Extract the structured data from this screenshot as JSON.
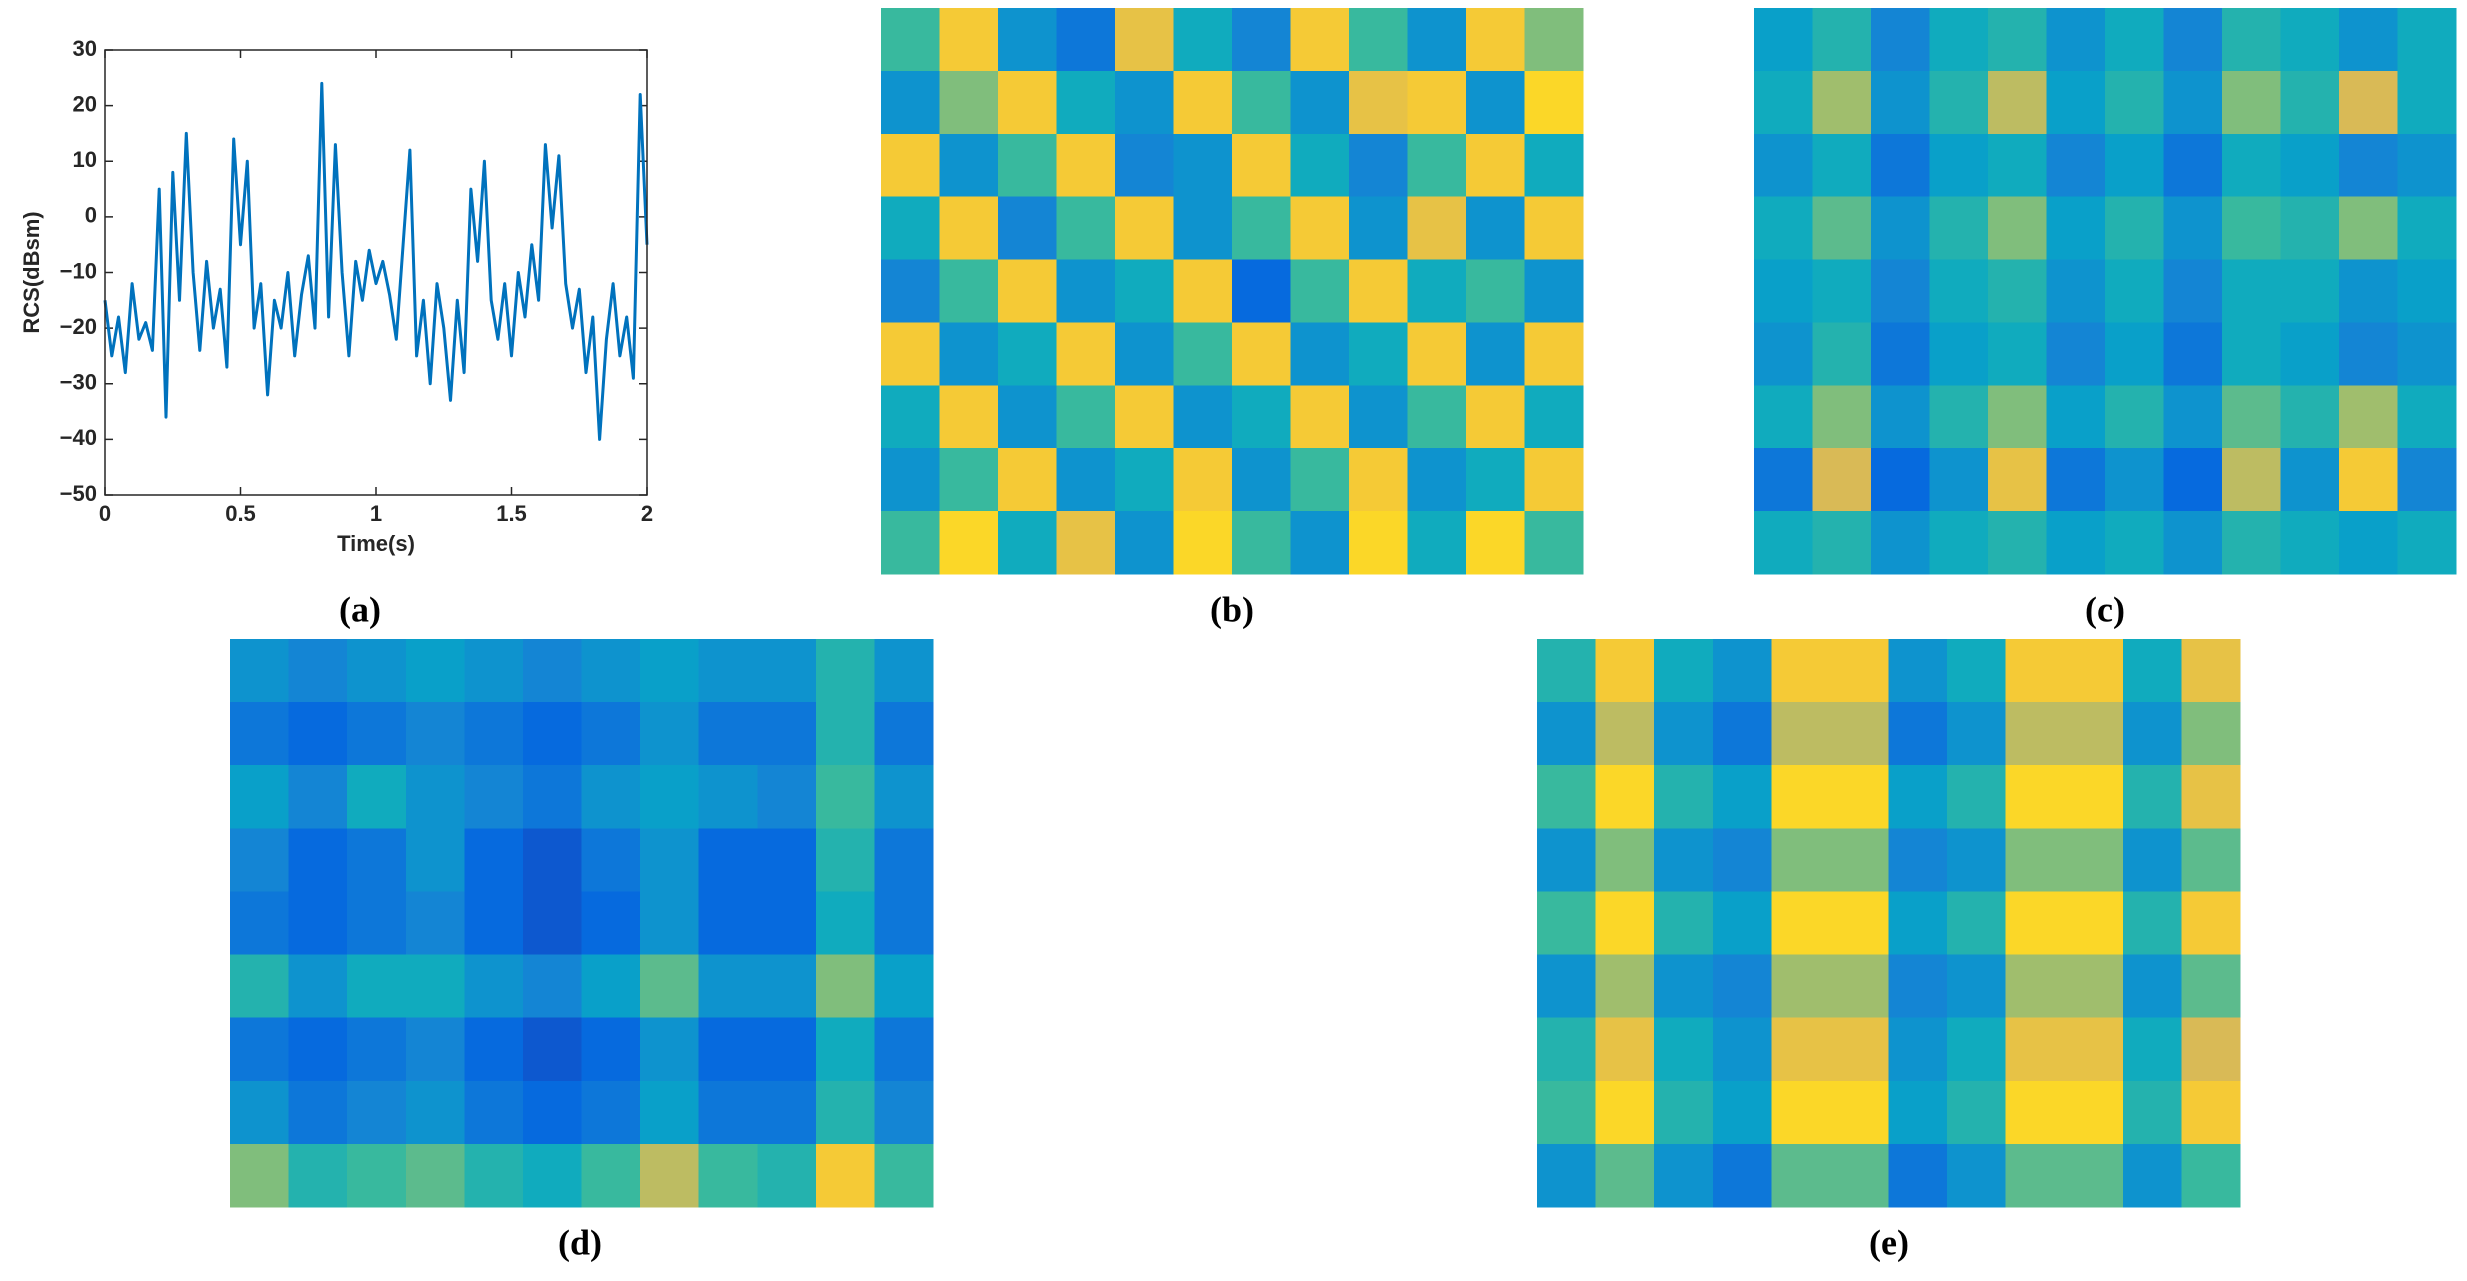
{
  "chart_data": [
    {
      "type": "line",
      "label": "(a)",
      "xlabel": "Time(s)",
      "ylabel": "RCS(dBsm)",
      "color": "#0072bd",
      "xlim": [
        0,
        2
      ],
      "xticks": [
        0,
        0.5,
        1,
        1.5,
        2
      ],
      "ylim": [
        -50,
        30
      ],
      "yticks": [
        {
          "value": -50,
          "label": "−50"
        },
        {
          "value": -40,
          "label": "−40"
        },
        {
          "value": -30,
          "label": "−30"
        },
        {
          "value": -20,
          "label": "−20"
        },
        {
          "value": -10,
          "label": "−10"
        },
        0,
        10,
        20,
        30
      ],
      "x": [
        0,
        0.025,
        0.05,
        0.075,
        0.1,
        0.125,
        0.15,
        0.175,
        0.2,
        0.225,
        0.25,
        0.275,
        0.3,
        0.325,
        0.35,
        0.375,
        0.4,
        0.425,
        0.45,
        0.475,
        0.5,
        0.525,
        0.55,
        0.575,
        0.6,
        0.625,
        0.65,
        0.675,
        0.7,
        0.725,
        0.75,
        0.775,
        0.8,
        0.825,
        0.85,
        0.875,
        0.9,
        0.925,
        0.95,
        0.975,
        1.0,
        1.025,
        1.05,
        1.075,
        1.1,
        1.125,
        1.15,
        1.175,
        1.2,
        1.225,
        1.25,
        1.275,
        1.3,
        1.325,
        1.35,
        1.375,
        1.4,
        1.425,
        1.45,
        1.475,
        1.5,
        1.525,
        1.55,
        1.575,
        1.6,
        1.625,
        1.65,
        1.675,
        1.7,
        1.725,
        1.75,
        1.775,
        1.8,
        1.825,
        1.85,
        1.875,
        1.9,
        1.925,
        1.95,
        1.975,
        2.0
      ],
      "values": [
        -15,
        -25,
        -18,
        -28,
        -12,
        -22,
        -19,
        -24,
        5,
        -36,
        8,
        -15,
        15,
        -10,
        -24,
        -8,
        -20,
        -13,
        -27,
        14,
        -5,
        10,
        -20,
        -12,
        -32,
        -15,
        -20,
        -10,
        -25,
        -14,
        -7,
        -20,
        24,
        -18,
        13,
        -10,
        -25,
        -8,
        -15,
        -6,
        -12,
        -8,
        -14,
        -22,
        -5,
        12,
        -25,
        -15,
        -30,
        -12,
        -20,
        -33,
        -15,
        -28,
        5,
        -8,
        10,
        -15,
        -22,
        -12,
        -25,
        -10,
        -18,
        -5,
        -15,
        13,
        -2,
        11,
        -12,
        -20,
        -13,
        -28,
        -18,
        -40,
        -22,
        -12,
        -25,
        -18,
        -29,
        22,
        -5
      ]
    },
    {
      "type": "heatmap",
      "label": "(b)",
      "zlim": [
        0,
        1
      ],
      "colormap": [
        "#352a87",
        "#0363e1",
        "#1485d4",
        "#06a7c6",
        "#38b99e",
        "#92bf73",
        "#d9ba56",
        "#fcce2e",
        "#f9fb0e"
      ],
      "z": [
        [
          0.5,
          0.85,
          0.3,
          0.2,
          0.8,
          0.4,
          0.25,
          0.85,
          0.5,
          0.3,
          0.85,
          0.6
        ],
        [
          0.3,
          0.6,
          0.85,
          0.4,
          0.3,
          0.85,
          0.5,
          0.3,
          0.8,
          0.85,
          0.3,
          0.9
        ],
        [
          0.85,
          0.3,
          0.5,
          0.85,
          0.25,
          0.3,
          0.85,
          0.4,
          0.25,
          0.5,
          0.85,
          0.4
        ],
        [
          0.4,
          0.85,
          0.25,
          0.5,
          0.85,
          0.3,
          0.5,
          0.85,
          0.3,
          0.8,
          0.3,
          0.85
        ],
        [
          0.25,
          0.5,
          0.85,
          0.3,
          0.4,
          0.85,
          0.15,
          0.5,
          0.85,
          0.4,
          0.5,
          0.3
        ],
        [
          0.85,
          0.3,
          0.4,
          0.85,
          0.3,
          0.5,
          0.85,
          0.3,
          0.4,
          0.85,
          0.3,
          0.85
        ],
        [
          0.4,
          0.85,
          0.3,
          0.5,
          0.85,
          0.3,
          0.4,
          0.85,
          0.3,
          0.5,
          0.85,
          0.4
        ],
        [
          0.3,
          0.5,
          0.85,
          0.3,
          0.4,
          0.85,
          0.3,
          0.5,
          0.85,
          0.3,
          0.4,
          0.85
        ],
        [
          0.5,
          0.9,
          0.4,
          0.8,
          0.3,
          0.9,
          0.5,
          0.3,
          0.9,
          0.4,
          0.9,
          0.5
        ]
      ]
    },
    {
      "type": "heatmap",
      "label": "(c)",
      "zlim": [
        0,
        1
      ],
      "colormap": [
        "#352a87",
        "#0363e1",
        "#1485d4",
        "#06a7c6",
        "#38b99e",
        "#92bf73",
        "#d9ba56",
        "#fcce2e",
        "#f9fb0e"
      ],
      "z": [
        [
          0.35,
          0.45,
          0.25,
          0.4,
          0.45,
          0.3,
          0.4,
          0.25,
          0.45,
          0.4,
          0.3,
          0.4
        ],
        [
          0.4,
          0.65,
          0.3,
          0.45,
          0.7,
          0.35,
          0.45,
          0.3,
          0.6,
          0.45,
          0.75,
          0.4
        ],
        [
          0.3,
          0.4,
          0.2,
          0.35,
          0.4,
          0.25,
          0.35,
          0.2,
          0.4,
          0.35,
          0.25,
          0.3
        ],
        [
          0.4,
          0.55,
          0.3,
          0.45,
          0.6,
          0.35,
          0.45,
          0.3,
          0.5,
          0.45,
          0.6,
          0.4
        ],
        [
          0.35,
          0.4,
          0.25,
          0.4,
          0.45,
          0.3,
          0.4,
          0.25,
          0.4,
          0.4,
          0.3,
          0.35
        ],
        [
          0.3,
          0.45,
          0.2,
          0.35,
          0.4,
          0.25,
          0.35,
          0.2,
          0.4,
          0.35,
          0.25,
          0.3
        ],
        [
          0.4,
          0.6,
          0.3,
          0.45,
          0.6,
          0.35,
          0.45,
          0.3,
          0.55,
          0.45,
          0.65,
          0.4
        ],
        [
          0.2,
          0.75,
          0.15,
          0.3,
          0.8,
          0.2,
          0.3,
          0.15,
          0.7,
          0.3,
          0.85,
          0.25
        ],
        [
          0.4,
          0.45,
          0.3,
          0.4,
          0.45,
          0.35,
          0.4,
          0.3,
          0.45,
          0.4,
          0.35,
          0.4
        ]
      ]
    },
    {
      "type": "heatmap",
      "label": "(d)",
      "zlim": [
        0,
        1
      ],
      "colormap": [
        "#352a87",
        "#0363e1",
        "#1485d4",
        "#06a7c6",
        "#38b99e",
        "#92bf73",
        "#d9ba56",
        "#fcce2e",
        "#f9fb0e"
      ],
      "z": [
        [
          0.3,
          0.25,
          0.3,
          0.35,
          0.3,
          0.25,
          0.3,
          0.35,
          0.3,
          0.3,
          0.45,
          0.3
        ],
        [
          0.2,
          0.15,
          0.2,
          0.25,
          0.2,
          0.15,
          0.2,
          0.3,
          0.2,
          0.2,
          0.45,
          0.2
        ],
        [
          0.35,
          0.25,
          0.4,
          0.3,
          0.25,
          0.2,
          0.3,
          0.35,
          0.3,
          0.25,
          0.5,
          0.3
        ],
        [
          0.25,
          0.15,
          0.2,
          0.3,
          0.15,
          0.1,
          0.2,
          0.3,
          0.15,
          0.15,
          0.45,
          0.2
        ],
        [
          0.2,
          0.15,
          0.2,
          0.25,
          0.15,
          0.1,
          0.15,
          0.3,
          0.15,
          0.15,
          0.4,
          0.2
        ],
        [
          0.45,
          0.3,
          0.4,
          0.4,
          0.3,
          0.25,
          0.35,
          0.55,
          0.3,
          0.3,
          0.6,
          0.35
        ],
        [
          0.2,
          0.15,
          0.2,
          0.25,
          0.15,
          0.1,
          0.15,
          0.3,
          0.15,
          0.15,
          0.4,
          0.2
        ],
        [
          0.3,
          0.2,
          0.25,
          0.3,
          0.2,
          0.15,
          0.2,
          0.35,
          0.2,
          0.2,
          0.45,
          0.25
        ],
        [
          0.6,
          0.45,
          0.5,
          0.55,
          0.45,
          0.4,
          0.5,
          0.7,
          0.5,
          0.45,
          0.85,
          0.5
        ]
      ]
    },
    {
      "type": "heatmap",
      "label": "(e)",
      "zlim": [
        0,
        1
      ],
      "colormap": [
        "#352a87",
        "#0363e1",
        "#1485d4",
        "#06a7c6",
        "#38b99e",
        "#92bf73",
        "#d9ba56",
        "#fcce2e",
        "#f9fb0e"
      ],
      "z": [
        [
          0.45,
          0.85,
          0.4,
          0.3,
          0.85,
          0.85,
          0.3,
          0.4,
          0.85,
          0.85,
          0.4,
          0.8
        ],
        [
          0.3,
          0.7,
          0.3,
          0.2,
          0.7,
          0.7,
          0.2,
          0.3,
          0.7,
          0.7,
          0.3,
          0.6
        ],
        [
          0.5,
          0.9,
          0.45,
          0.35,
          0.9,
          0.9,
          0.35,
          0.45,
          0.9,
          0.9,
          0.45,
          0.8
        ],
        [
          0.3,
          0.6,
          0.3,
          0.25,
          0.6,
          0.6,
          0.25,
          0.3,
          0.6,
          0.6,
          0.3,
          0.55
        ],
        [
          0.5,
          0.9,
          0.45,
          0.35,
          0.9,
          0.9,
          0.35,
          0.45,
          0.9,
          0.9,
          0.45,
          0.85
        ],
        [
          0.3,
          0.65,
          0.3,
          0.25,
          0.65,
          0.65,
          0.25,
          0.3,
          0.65,
          0.65,
          0.3,
          0.55
        ],
        [
          0.45,
          0.8,
          0.4,
          0.3,
          0.8,
          0.8,
          0.3,
          0.4,
          0.8,
          0.8,
          0.4,
          0.75
        ],
        [
          0.5,
          0.9,
          0.45,
          0.35,
          0.9,
          0.9,
          0.35,
          0.45,
          0.9,
          0.9,
          0.45,
          0.85
        ],
        [
          0.3,
          0.55,
          0.3,
          0.2,
          0.55,
          0.55,
          0.2,
          0.3,
          0.55,
          0.55,
          0.3,
          0.5
        ]
      ]
    }
  ]
}
